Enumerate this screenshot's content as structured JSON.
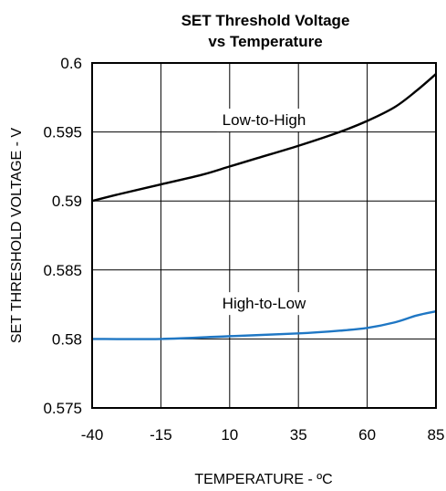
{
  "chart_data": {
    "type": "line",
    "title_line1": "SET Threshold Voltage",
    "title_line2": "vs Temperature",
    "xlabel": "TEMPERATURE - ºC",
    "ylabel": "SET THRESHOLD VOLTAGE - V",
    "x_ticks": [
      "-40",
      "-15",
      "10",
      "35",
      "60",
      "85"
    ],
    "y_ticks": [
      "0.575",
      "0.58",
      "0.585",
      "0.59",
      "0.595",
      "0.6"
    ],
    "xlim": [
      -40,
      85
    ],
    "ylim": [
      0.575,
      0.6
    ],
    "grid": true,
    "series": [
      {
        "name": "Low-to-High",
        "color": "#000000",
        "points": [
          [
            -40,
            0.59
          ],
          [
            -30,
            0.5905
          ],
          [
            -15,
            0.5912
          ],
          [
            0,
            0.5919
          ],
          [
            10,
            0.5925
          ],
          [
            20,
            0.5931
          ],
          [
            35,
            0.594
          ],
          [
            50,
            0.595
          ],
          [
            60,
            0.5958
          ],
          [
            70,
            0.5968
          ],
          [
            78,
            0.598
          ],
          [
            85,
            0.5992
          ]
        ]
      },
      {
        "name": "High-to-Low",
        "color": "#1f77c4",
        "points": [
          [
            -40,
            0.58
          ],
          [
            -15,
            0.58
          ],
          [
            10,
            0.5802
          ],
          [
            35,
            0.5804
          ],
          [
            50,
            0.5806
          ],
          [
            60,
            0.5808
          ],
          [
            70,
            0.5812
          ],
          [
            78,
            0.5817
          ],
          [
            85,
            0.582
          ]
        ]
      }
    ],
    "annotations": [
      {
        "text": "Low-to-High",
        "x": 22.5,
        "y": 0.5955
      },
      {
        "text": "High-to-Low",
        "x": 22.5,
        "y": 0.5822
      }
    ]
  }
}
